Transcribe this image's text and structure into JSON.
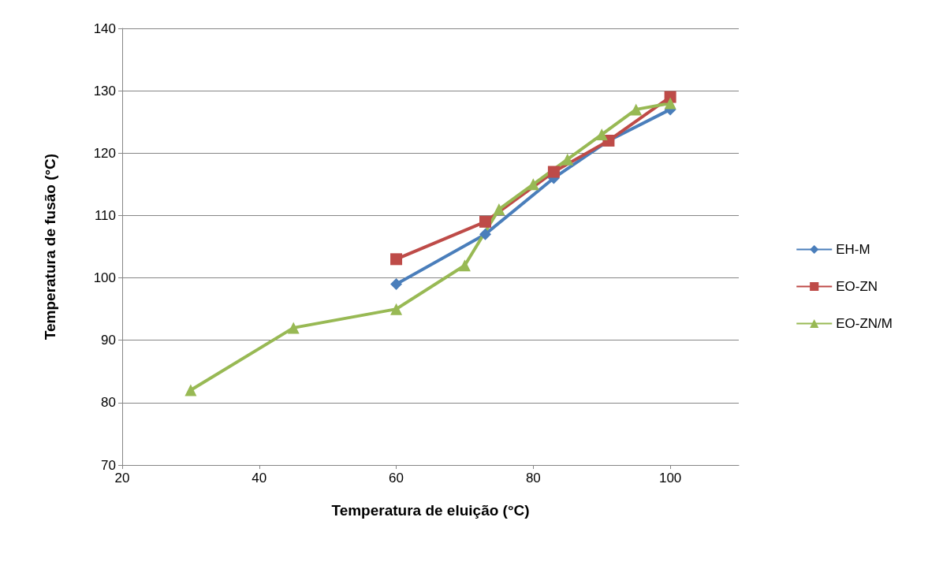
{
  "chart_data": {
    "type": "line",
    "xlabel": "Temperatura de eluição (°C)",
    "ylabel": "Temperatura de fusão (°C)",
    "xlim": [
      20,
      110
    ],
    "xticks": [
      20,
      40,
      60,
      80,
      100
    ],
    "ylim": [
      70,
      140
    ],
    "yticks": [
      70,
      80,
      90,
      100,
      110,
      120,
      130,
      140
    ],
    "grid": "y",
    "legend": "right",
    "series": [
      {
        "name": "EH-M",
        "color": "#4a7ebb",
        "marker": "diamond",
        "x": [
          60,
          73,
          83,
          91,
          100
        ],
        "values": [
          99,
          107,
          116,
          122,
          127
        ]
      },
      {
        "name": "EO-ZN",
        "color": "#be4b48",
        "marker": "square",
        "x": [
          60,
          73,
          83,
          91,
          100
        ],
        "values": [
          103,
          109,
          117,
          122,
          129
        ]
      },
      {
        "name": "EO-ZN/M",
        "color": "#98b954",
        "marker": "triangle",
        "x": [
          30,
          45,
          60,
          70,
          75,
          80,
          85,
          90,
          95,
          100
        ],
        "values": [
          82,
          92,
          95,
          102,
          111,
          115,
          119,
          123,
          127,
          128
        ]
      }
    ]
  }
}
